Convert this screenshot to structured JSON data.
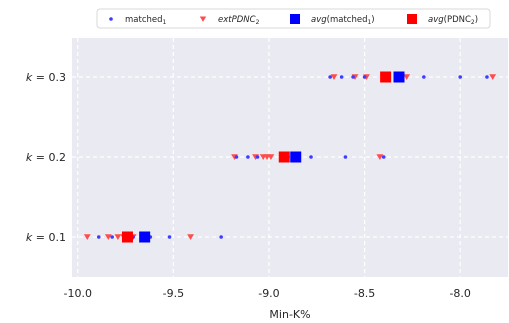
{
  "chart_data": {
    "type": "scatter",
    "xlabel": "Min-K%",
    "ylabel": "",
    "xlim": [
      -10.03,
      -7.75
    ],
    "x_ticks": [
      -10.0,
      -9.5,
      -9.0,
      -8.5,
      -8.0
    ],
    "x_tick_labels": [
      "-10.0",
      "-9.5",
      "-9.0",
      "-8.5",
      "-8.0"
    ],
    "categories": [
      "k = 0.1",
      "k = 0.2",
      "k = 0.3"
    ],
    "grid": true,
    "legend_position": "top",
    "series": [
      {
        "legend_label": "matched",
        "legend_sub": "1",
        "legend_italic": false,
        "marker": "dot",
        "color": "#3d3dff",
        "points": [
          {
            "k": "k = 0.1",
            "x": [
              -9.89,
              -9.82,
              -9.76,
              -9.71,
              -9.62,
              -9.52,
              -9.25
            ]
          },
          {
            "k": "k = 0.2",
            "x": [
              -9.17,
              -9.11,
              -9.06,
              -8.9,
              -8.78,
              -8.6,
              -8.4
            ]
          },
          {
            "k": "k = 0.3",
            "x": [
              -8.68,
              -8.62,
              -8.56,
              -8.5,
              -8.31,
              -8.19,
              -8.0,
              -7.86
            ]
          }
        ]
      },
      {
        "legend_label": "extPDNC",
        "legend_sub": "2",
        "legend_italic": true,
        "marker": "triangle-down",
        "color": "#ff4d4d",
        "points": [
          {
            "k": "k = 0.1",
            "x": [
              -9.95,
              -9.84,
              -9.79,
              -9.76,
              -9.71,
              -9.41
            ]
          },
          {
            "k": "k = 0.2",
            "x": [
              -9.18,
              -9.07,
              -9.03,
              -9.01,
              -8.99,
              -8.42
            ]
          },
          {
            "k": "k = 0.3",
            "x": [
              -8.66,
              -8.55,
              -8.49,
              -8.28,
              -7.83
            ]
          }
        ]
      },
      {
        "legend_label": "avg",
        "legend_paren": "matched",
        "legend_sub": "1",
        "legend_italic": true,
        "marker": "square",
        "color": "#0000ff",
        "points": [
          {
            "k": "k = 0.1",
            "x": [
              -9.65
            ]
          },
          {
            "k": "k = 0.2",
            "x": [
              -8.86
            ]
          },
          {
            "k": "k = 0.3",
            "x": [
              -8.32
            ]
          }
        ]
      },
      {
        "legend_label": "avg",
        "legend_paren": "PDNC",
        "legend_sub": "2",
        "legend_italic": true,
        "marker": "square",
        "color": "#ff0000",
        "points": [
          {
            "k": "k = 0.1",
            "x": [
              -9.74
            ]
          },
          {
            "k": "k = 0.2",
            "x": [
              -8.92
            ]
          },
          {
            "k": "k = 0.3",
            "x": [
              -8.39
            ]
          }
        ]
      }
    ],
    "colors": {
      "plot_bg": "#eaeaf2",
      "grid": "#ffffff",
      "text": "#262626"
    }
  }
}
